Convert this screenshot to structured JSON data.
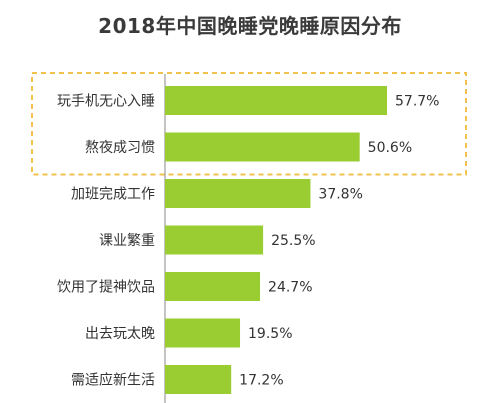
{
  "chart_data": {
    "type": "bar",
    "orientation": "horizontal",
    "title": "2018年中国晚睡党晚睡原因分布",
    "categories": [
      "玩手机无心入睡",
      "熬夜成习惯",
      "加班完成工作",
      "课业繁重",
      "饮用了提神饮品",
      "出去玩太晚",
      "需适应新生活"
    ],
    "values": [
      57.7,
      50.6,
      37.8,
      25.5,
      24.7,
      19.5,
      17.2
    ],
    "value_labels": [
      "57.7%",
      "50.6%",
      "37.8%",
      "25.5%",
      "24.7%",
      "19.5%",
      "17.2%"
    ],
    "unit": "%",
    "xlim": [
      0,
      60
    ],
    "highlighted_categories": [
      "玩手机无心入睡",
      "熬夜成习惯"
    ],
    "grid": false,
    "legend": "none",
    "colors": {
      "bar": "#9ACD32",
      "highlight_border": "#F2C14E",
      "axis": "#8a8a8a",
      "text": "#333333",
      "title": "#3a3a3a"
    }
  }
}
